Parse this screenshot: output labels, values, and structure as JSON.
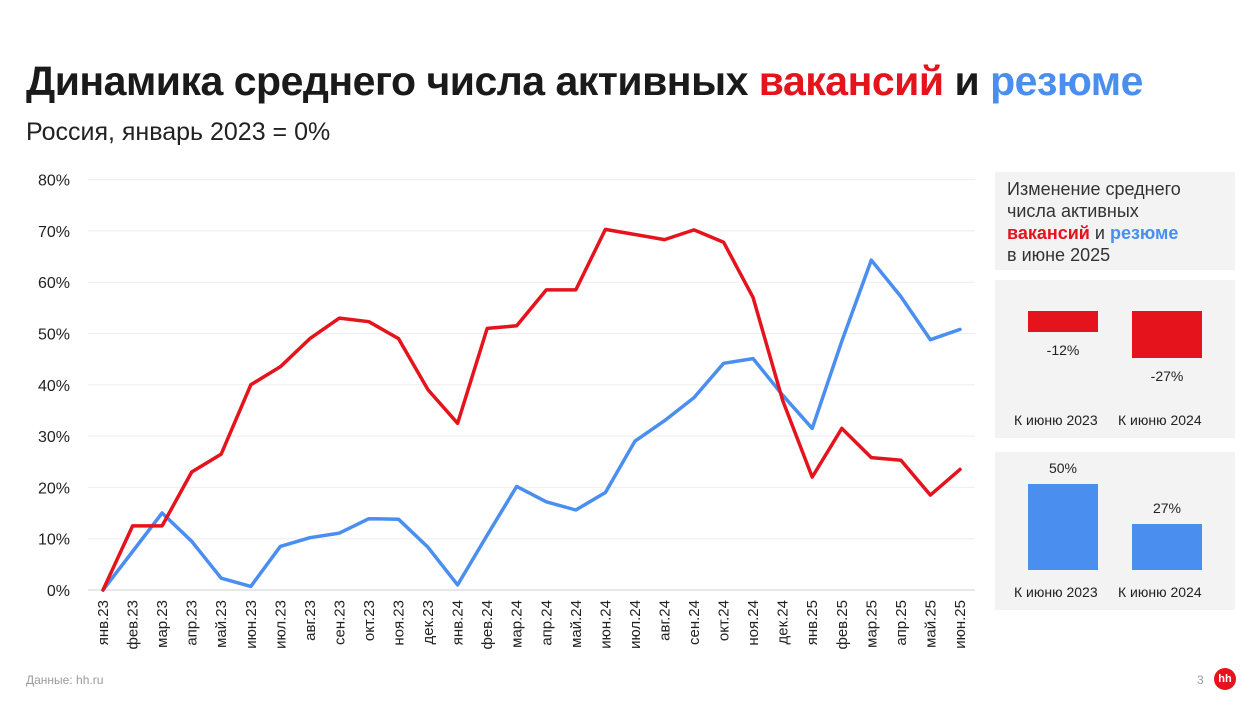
{
  "title": {
    "part1": "Динамика среднего числа активных",
    "vacancies": "вакансий",
    "and": "и",
    "resumes": "резюме"
  },
  "subtitle": "Россия, январь 2023 = 0%",
  "colors": {
    "vacancies": "#e5131c",
    "resumes": "#4a8ef0"
  },
  "chart_data": {
    "type": "line",
    "categories": [
      "янв.23",
      "фев.23",
      "мар.23",
      "апр.23",
      "май.23",
      "июн.23",
      "июл.23",
      "авг.23",
      "сен.23",
      "окт.23",
      "ноя.23",
      "дек.23",
      "янв.24",
      "фев.24",
      "мар.24",
      "апр.24",
      "май.24",
      "июн.24",
      "июл.24",
      "авг.24",
      "сен.24",
      "окт.24",
      "ноя.24",
      "дек.24",
      "янв.25",
      "фев.25",
      "мар.25",
      "апр.25",
      "май.25",
      "июн.25"
    ],
    "series": [
      {
        "key": "vacancies",
        "color": "#e5131c",
        "values": [
          0,
          12.5,
          12.5,
          23,
          26.5,
          40,
          43.5,
          49,
          53,
          52.3,
          49,
          39,
          32.5,
          51,
          51.5,
          58.5,
          58.5,
          70.3,
          69.3,
          68.3,
          70.2,
          67.8,
          57,
          37,
          22,
          31.5,
          25.8,
          25.3,
          18.5,
          23.5
        ]
      },
      {
        "key": "resumes",
        "color": "#4a8ef0",
        "values": [
          0,
          7.5,
          15,
          9.5,
          2.3,
          0.7,
          8.5,
          10.2,
          11.1,
          13.9,
          13.8,
          8.3,
          1,
          10.7,
          20.2,
          17.2,
          15.6,
          19,
          29,
          33,
          37.5,
          44.2,
          45.1,
          38,
          31.5,
          48.5,
          64.3,
          57.2,
          48.8,
          50.8
        ]
      }
    ],
    "yticks": [
      "0%",
      "10%",
      "20%",
      "30%",
      "40%",
      "50%",
      "60%",
      "70%",
      "80%"
    ],
    "ylim": [
      0,
      80
    ],
    "grid": true
  },
  "side": {
    "head_line1": "Изменение среднего",
    "head_line2": "числа активных",
    "head_vac": "вакансий",
    "head_and": "и",
    "head_res": "резюме",
    "head_line4": "в июне 2025",
    "vacancies": {
      "values": [
        -12,
        -27
      ],
      "labels": [
        "-12%",
        "-27%"
      ]
    },
    "resumes": {
      "values": [
        50,
        27
      ],
      "labels": [
        "50%",
        "27%"
      ]
    },
    "categories": [
      "К июню 2023",
      "К июню 2024"
    ]
  },
  "footer": {
    "source": "Данные: hh.ru",
    "page": "3",
    "logo": "hh"
  }
}
